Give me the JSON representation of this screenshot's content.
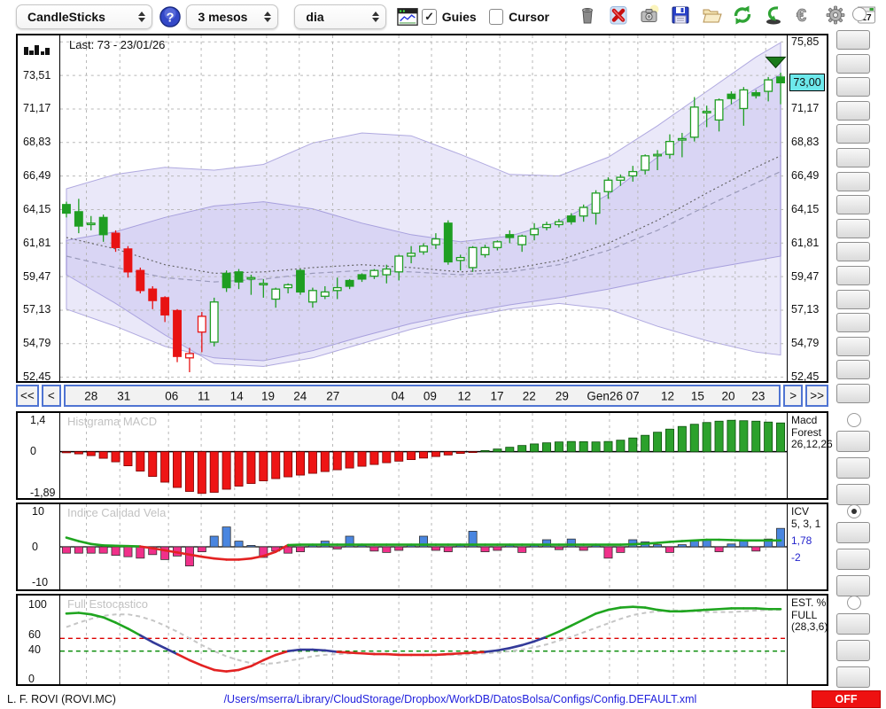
{
  "toolbar": {
    "chart_type": "CandleSticks",
    "period": "3 mesos",
    "interval": "dia",
    "help_label": "?",
    "guies_label": "Guies",
    "guies_checked": true,
    "cursor_label": "Cursor",
    "cursor_checked": false,
    "calendar_day": "17",
    "icon_buttons": [
      "trash-icon",
      "delete-icon",
      "snapshot-icon",
      "save-icon",
      "open-folder-icon",
      "refresh-icon",
      "undo-icon",
      "euro-icon",
      "settings-icon",
      "calendar-icon"
    ]
  },
  "xaxis": {
    "nav_first": "<<",
    "nav_prev": "<",
    "nav_next": ">",
    "nav_last": ">>",
    "labels": [
      {
        "t": "28",
        "pct": 3.6
      },
      {
        "t": "31",
        "pct": 8.2
      },
      {
        "t": "06",
        "pct": 14.9
      },
      {
        "t": "11",
        "pct": 19.4
      },
      {
        "t": "14",
        "pct": 24.0
      },
      {
        "t": "19",
        "pct": 28.4
      },
      {
        "t": "24",
        "pct": 32.9
      },
      {
        "t": "27",
        "pct": 37.5
      },
      {
        "t": "04",
        "pct": 46.6
      },
      {
        "t": "09",
        "pct": 51.1
      },
      {
        "t": "12",
        "pct": 55.9
      },
      {
        "t": "17",
        "pct": 60.5
      },
      {
        "t": "22",
        "pct": 65.0
      },
      {
        "t": "29",
        "pct": 69.6
      },
      {
        "t": "Gen26",
        "pct": 75.6
      },
      {
        "t": "07",
        "pct": 79.5
      },
      {
        "t": "12",
        "pct": 84.4
      },
      {
        "t": "15",
        "pct": 88.6
      },
      {
        "t": "20",
        "pct": 92.9
      },
      {
        "t": "23",
        "pct": 97.1
      }
    ]
  },
  "chart_data": [
    {
      "type": "candlestick",
      "last_label": "Last: 73 - 23/01/26",
      "ylim": [
        52.18,
        76.3
      ],
      "yticks": [
        {
          "v": 75.85,
          "t": "75,85"
        },
        {
          "v": 73.51,
          "t": "73,51"
        },
        {
          "v": 71.17,
          "t": "71,17"
        },
        {
          "v": 68.83,
          "t": "68,83"
        },
        {
          "v": 66.49,
          "t": "66,49"
        },
        {
          "v": 64.15,
          "t": "64,15"
        },
        {
          "v": 61.81,
          "t": "61,81"
        },
        {
          "v": 59.47,
          "t": "59,47"
        },
        {
          "v": 57.13,
          "t": "57,13"
        },
        {
          "v": 54.79,
          "t": "54,79"
        },
        {
          "v": 52.45,
          "t": "52,45"
        }
      ],
      "price_badge": {
        "value": 73.0,
        "text": "73,00"
      },
      "up_color": "#1f9e22",
      "down_color": "#e81212",
      "band_color": "rgba(150,140,225,0.20)",
      "band_edge": "rgba(120,110,200,0.55)",
      "band_x": [
        0,
        4,
        8,
        12,
        16,
        20,
        24,
        28,
        32,
        36,
        40,
        44,
        48,
        52,
        56,
        58
      ],
      "bands": [
        {
          "upper": [
            65.6,
            66.6,
            67.1,
            66.9,
            67.3,
            68.8,
            69.5,
            69.3,
            68.0,
            66.6,
            66.5,
            67.8,
            70.0,
            72.4,
            74.8,
            75.8
          ],
          "lower": [
            59.6,
            57.6,
            55.4,
            53.4,
            53.2,
            53.8,
            54.8,
            55.8,
            56.6,
            57.2,
            57.6,
            57.2,
            56.0,
            55.0,
            54.2,
            54.0
          ]
        },
        {
          "upper": [
            62.0,
            62.6,
            63.6,
            64.4,
            64.7,
            64.2,
            63.2,
            62.4,
            61.9,
            62.3,
            63.3,
            65.2,
            67.8,
            70.4,
            72.6,
            73.6
          ],
          "lower": [
            57.2,
            56.0,
            54.6,
            53.8,
            53.6,
            54.3,
            55.3,
            56.2,
            56.9,
            57.5,
            58.0,
            58.6,
            59.3,
            60.0,
            60.6,
            60.9
          ]
        }
      ],
      "ma_dotted": [
        62.2,
        61.4,
        60.3,
        59.7,
        59.8,
        60.1,
        60.3,
        60.1,
        59.8,
        60.0,
        60.6,
        61.8,
        63.4,
        65.3,
        67.1,
        67.9
      ],
      "ma_dashed": [
        60.9,
        60.1,
        59.4,
        59.1,
        59.3,
        59.7,
        59.9,
        59.8,
        59.6,
        59.8,
        60.3,
        61.3,
        62.7,
        64.4,
        66.0,
        66.8
      ],
      "marker": {
        "bar": 57.6,
        "price": 74.3
      },
      "candles": [
        [
          63.9,
          64.7,
          63.6,
          64.5,
          "gf"
        ],
        [
          64.0,
          64.9,
          62.5,
          63.0,
          "gf"
        ],
        [
          63.1,
          63.7,
          62.7,
          63.2,
          "gh"
        ],
        [
          63.6,
          63.8,
          61.9,
          62.4,
          "gf"
        ],
        [
          62.5,
          62.7,
          61.2,
          61.5,
          "rf"
        ],
        [
          61.4,
          61.6,
          59.4,
          59.8,
          "rf"
        ],
        [
          59.9,
          60.1,
          58.3,
          58.5,
          "rf"
        ],
        [
          58.6,
          58.8,
          57.2,
          57.8,
          "rf"
        ],
        [
          58.0,
          58.1,
          56.3,
          56.8,
          "rf"
        ],
        [
          57.1,
          57.2,
          53.5,
          53.9,
          "rf"
        ],
        [
          54.1,
          54.5,
          52.8,
          53.8,
          "rh"
        ],
        [
          56.7,
          57.0,
          54.2,
          55.6,
          "rh"
        ],
        [
          54.9,
          58.0,
          54.6,
          57.7,
          "gh"
        ],
        [
          58.7,
          59.9,
          58.4,
          59.7,
          "gf"
        ],
        [
          59.1,
          60.0,
          58.6,
          59.8,
          "gf"
        ],
        [
          59.3,
          59.6,
          58.2,
          59.4,
          "gh"
        ],
        [
          58.9,
          59.3,
          58.0,
          59.0,
          "gh"
        ],
        [
          57.9,
          58.7,
          57.3,
          58.6,
          "gh"
        ],
        [
          58.7,
          59.0,
          58.3,
          58.9,
          "gh"
        ],
        [
          58.4,
          60.0,
          58.2,
          59.9,
          "gf"
        ],
        [
          57.7,
          58.7,
          57.3,
          58.5,
          "gh"
        ],
        [
          58.1,
          58.8,
          57.9,
          58.4,
          "gh"
        ],
        [
          58.5,
          59.4,
          57.9,
          58.7,
          "gh"
        ],
        [
          58.8,
          59.3,
          58.6,
          59.2,
          "gf"
        ],
        [
          59.3,
          59.7,
          59.1,
          59.6,
          "gf"
        ],
        [
          59.5,
          60.0,
          59.3,
          59.9,
          "gh"
        ],
        [
          59.6,
          60.3,
          59.0,
          60.0,
          "gh"
        ],
        [
          59.8,
          61.0,
          59.2,
          60.9,
          "gh"
        ],
        [
          60.9,
          61.6,
          60.4,
          61.1,
          "gh"
        ],
        [
          61.2,
          61.8,
          61.0,
          61.6,
          "gh"
        ],
        [
          61.7,
          62.5,
          61.4,
          62.1,
          "gh"
        ],
        [
          60.5,
          63.4,
          60.3,
          63.2,
          "gf"
        ],
        [
          60.8,
          61.0,
          59.9,
          60.6,
          "gh"
        ],
        [
          60.1,
          61.6,
          59.8,
          61.5,
          "gh"
        ],
        [
          61.0,
          61.7,
          60.8,
          61.5,
          "gh"
        ],
        [
          61.5,
          62.0,
          61.3,
          61.9,
          "gh"
        ],
        [
          62.2,
          62.7,
          61.8,
          62.4,
          "gf"
        ],
        [
          61.7,
          62.4,
          61.2,
          62.3,
          "gh"
        ],
        [
          62.4,
          63.2,
          62.0,
          62.8,
          "gh"
        ],
        [
          62.9,
          63.3,
          62.7,
          63.1,
          "gh"
        ],
        [
          63.1,
          63.5,
          62.9,
          63.3,
          "gh"
        ],
        [
          63.3,
          63.9,
          63.1,
          63.7,
          "gf"
        ],
        [
          63.7,
          64.5,
          63.3,
          64.3,
          "gh"
        ],
        [
          63.9,
          65.5,
          63.1,
          65.3,
          "gh"
        ],
        [
          65.4,
          66.4,
          64.9,
          66.2,
          "gh"
        ],
        [
          66.2,
          66.6,
          65.8,
          66.4,
          "gh"
        ],
        [
          66.5,
          67.2,
          66.1,
          66.8,
          "gh"
        ],
        [
          66.9,
          68.0,
          66.6,
          67.9,
          "gh"
        ],
        [
          67.9,
          68.3,
          66.9,
          68.0,
          "gh"
        ],
        [
          68.0,
          69.4,
          67.7,
          68.9,
          "gh"
        ],
        [
          69.0,
          69.5,
          67.8,
          69.1,
          "gh"
        ],
        [
          69.2,
          72.0,
          68.9,
          71.3,
          "gh"
        ],
        [
          71.0,
          71.4,
          69.9,
          70.9,
          "gh"
        ],
        [
          70.4,
          71.9,
          69.6,
          71.8,
          "gh"
        ],
        [
          71.9,
          72.4,
          71.5,
          72.2,
          "gf"
        ],
        [
          71.2,
          72.7,
          70.0,
          72.5,
          "gh"
        ],
        [
          72.1,
          72.5,
          71.9,
          72.3,
          "gf"
        ],
        [
          72.4,
          73.4,
          71.7,
          73.2,
          "gh"
        ],
        [
          73.4,
          73.7,
          71.5,
          73.0,
          "gf"
        ]
      ]
    },
    {
      "type": "bar",
      "title": "Histgrama MACD",
      "right_label": "Macd\nForest\n26,12,26",
      "ylim": [
        -2.1,
        1.75
      ],
      "yticks": [
        {
          "v": 1.4,
          "t": "1,4"
        },
        {
          "v": 0,
          "t": "0"
        },
        {
          "v": -1.89,
          "t": "-1,89"
        }
      ],
      "pos_color": "#2ca12c",
      "neg_color": "#ee1515",
      "values": [
        -0.05,
        -0.1,
        -0.18,
        -0.3,
        -0.46,
        -0.64,
        -0.88,
        -1.12,
        -1.38,
        -1.62,
        -1.8,
        -1.89,
        -1.84,
        -1.7,
        -1.56,
        -1.44,
        -1.32,
        -1.22,
        -1.14,
        -1.06,
        -0.98,
        -0.9,
        -0.82,
        -0.74,
        -0.66,
        -0.58,
        -0.5,
        -0.43,
        -0.36,
        -0.29,
        -0.22,
        -0.15,
        -0.08,
        -0.02,
        0.05,
        0.12,
        0.2,
        0.28,
        0.35,
        0.4,
        0.44,
        0.46,
        0.45,
        0.44,
        0.46,
        0.52,
        0.62,
        0.74,
        0.88,
        1.02,
        1.14,
        1.24,
        1.32,
        1.38,
        1.42,
        1.4,
        1.38,
        1.34,
        1.3
      ]
    },
    {
      "type": "bar+line",
      "title": "Indice Calidad Vela",
      "right_label": "ICV\n5, 3, 1",
      "right_values": [
        "1,78",
        "-2"
      ],
      "ylim": [
        -12,
        12
      ],
      "yticks": [
        {
          "v": 10,
          "t": "10"
        },
        {
          "v": 0,
          "t": "0"
        },
        {
          "v": -10,
          "t": "-10"
        }
      ],
      "pos_color": "#4a86e0",
      "neg_color": "#f0308a",
      "line_pos_color": "#1fa51f",
      "line_neg_color": "#e32222",
      "bars": [
        -1.8,
        -1.8,
        -1.8,
        -1.8,
        -2.4,
        -2.8,
        -3.2,
        -2.2,
        -3.6,
        -2.6,
        -5.4,
        -1.4,
        3.0,
        5.6,
        1.6,
        0.4,
        -3.0,
        -1.2,
        -1.8,
        -1.4,
        0.6,
        1.6,
        -0.6,
        3.0,
        0.4,
        -1.2,
        -1.6,
        -1.0,
        0.6,
        3.0,
        -1.0,
        -1.4,
        0.6,
        4.4,
        -1.4,
        -1.0,
        0.6,
        -1.6,
        0.6,
        2.0,
        -0.8,
        2.2,
        -1.0,
        0.6,
        -3.2,
        -1.6,
        2.0,
        1.4,
        0.6,
        -1.6,
        0.6,
        1.8,
        2.0,
        -1.4,
        0.8,
        2.0,
        -1.2,
        2.2,
        5.2
      ],
      "line": [
        2.6,
        1.6,
        0.8,
        0.4,
        0.3,
        0.2,
        0.1,
        -0.4,
        -1.0,
        -1.6,
        -2.2,
        -2.8,
        -3.3,
        -3.6,
        -3.6,
        -3.3,
        -2.6,
        -1.4,
        0.5,
        0.6,
        0.6,
        0.6,
        0.6,
        0.6,
        0.6,
        0.6,
        0.6,
        0.6,
        0.6,
        0.6,
        0.6,
        0.6,
        0.6,
        0.6,
        0.6,
        0.6,
        0.6,
        0.6,
        0.6,
        0.6,
        0.6,
        0.6,
        0.6,
        0.6,
        0.6,
        0.6,
        0.7,
        0.9,
        1.1,
        1.4,
        1.6,
        1.8,
        2.0,
        2.0,
        1.9,
        1.8,
        1.8,
        1.8,
        1.8
      ]
    },
    {
      "type": "line",
      "title": "Full Estocastico",
      "right_label": "EST. %\nFULL\n(28,3,6)",
      "ylim": [
        -6,
        112
      ],
      "yticks": [
        {
          "v": 100,
          "t": "100"
        },
        {
          "v": 60,
          "t": "60"
        },
        {
          "v": 40,
          "t": "40"
        },
        {
          "v": 0,
          "t": "0"
        }
      ],
      "hlines": [
        {
          "v": 55,
          "color": "#dd0000"
        },
        {
          "v": 38,
          "color": "#008800"
        }
      ],
      "zone_high": 55,
      "zone_low": 38,
      "color_high": "#1fa51f",
      "color_mid": "#333a99",
      "color_low": "#e32222",
      "color_signal": "#c6c6c6",
      "k": [
        88,
        89,
        87,
        83,
        76,
        68,
        59,
        50,
        42,
        34,
        26,
        19,
        13,
        11,
        13,
        18,
        26,
        33,
        38,
        40,
        40,
        39,
        37,
        36,
        35,
        34,
        34,
        33,
        33,
        33,
        33,
        34,
        35,
        36,
        37,
        39,
        42,
        46,
        51,
        57,
        64,
        72,
        80,
        88,
        93,
        96,
        97,
        96,
        93,
        91,
        91,
        92,
        93,
        94,
        95,
        95,
        95,
        94,
        94
      ],
      "d": [
        70,
        76,
        81,
        85,
        87,
        87,
        84,
        79,
        72,
        64,
        55,
        46,
        38,
        31,
        26,
        22,
        21,
        22,
        25,
        28,
        31,
        33,
        34,
        35,
        35,
        35,
        34,
        34,
        33,
        33,
        33,
        33,
        33,
        34,
        35,
        36,
        38,
        40,
        43,
        47,
        52,
        57,
        63,
        69,
        75,
        81,
        86,
        89,
        91,
        92,
        92,
        91,
        90,
        90,
        90,
        91,
        92,
        93,
        93
      ]
    }
  ],
  "sidebar": {
    "tools": [
      {
        "name": "zoom-icon"
      },
      {
        "name": "indicator-panel-icon"
      },
      {
        "name": "hline-red-icon"
      },
      {
        "name": "hline-blue-icon"
      },
      {
        "name": "channel-icon"
      },
      {
        "name": "trendline-icon"
      },
      {
        "name": "sigma-trend-icon"
      },
      {
        "name": "arrow-down-red-icon"
      },
      {
        "name": "arrow-up-blue-icon"
      },
      {
        "name": "add-marker-icon"
      },
      {
        "name": "rows-icon"
      },
      {
        "name": "vscale-percent-icon"
      },
      {
        "name": "lines-percent-icon"
      },
      {
        "name": "forbid-icon"
      },
      {
        "name": "record-icon"
      },
      {
        "name": "swap-icon"
      }
    ],
    "panel_groups": [
      {
        "panel": "macd",
        "radio_checked": false,
        "icons": [
          "updown-arrows-icon",
          "lines-percent-icon",
          "curve-icon"
        ]
      },
      {
        "panel": "icv",
        "radio_checked": true,
        "icons": [
          "updown-arrows-icon",
          "lines-percent-icon",
          "curve-icon"
        ]
      },
      {
        "panel": "est",
        "radio_checked": false,
        "icons": [
          "updown-arrows-icon",
          "lines-percent-icon",
          "curve-icon"
        ]
      }
    ]
  },
  "statusbar": {
    "symbol": "L. F. ROVI (ROVI.MC)",
    "config_path": "/Users/mserra/Library/CloudStorage/Dropbox/WorkDB/DatosBolsa/Configs/Config.DEFAULT.xml",
    "off_label": "OFF"
  }
}
